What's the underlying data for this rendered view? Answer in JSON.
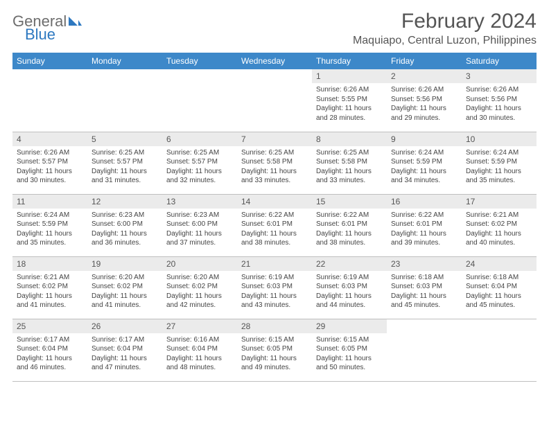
{
  "logo": {
    "word1": "General",
    "word2": "Blue"
  },
  "title": "February 2024",
  "location": "Maquiapo, Central Luzon, Philippines",
  "header_bg": "#3d88c0",
  "day_headers": [
    "Sunday",
    "Monday",
    "Tuesday",
    "Wednesday",
    "Thursday",
    "Friday",
    "Saturday"
  ],
  "weeks": [
    [
      null,
      null,
      null,
      null,
      {
        "n": "1",
        "sunrise": "Sunrise: 6:26 AM",
        "sunset": "Sunset: 5:55 PM",
        "day1": "Daylight: 11 hours",
        "day2": "and 28 minutes."
      },
      {
        "n": "2",
        "sunrise": "Sunrise: 6:26 AM",
        "sunset": "Sunset: 5:56 PM",
        "day1": "Daylight: 11 hours",
        "day2": "and 29 minutes."
      },
      {
        "n": "3",
        "sunrise": "Sunrise: 6:26 AM",
        "sunset": "Sunset: 5:56 PM",
        "day1": "Daylight: 11 hours",
        "day2": "and 30 minutes."
      }
    ],
    [
      {
        "n": "4",
        "sunrise": "Sunrise: 6:26 AM",
        "sunset": "Sunset: 5:57 PM",
        "day1": "Daylight: 11 hours",
        "day2": "and 30 minutes."
      },
      {
        "n": "5",
        "sunrise": "Sunrise: 6:25 AM",
        "sunset": "Sunset: 5:57 PM",
        "day1": "Daylight: 11 hours",
        "day2": "and 31 minutes."
      },
      {
        "n": "6",
        "sunrise": "Sunrise: 6:25 AM",
        "sunset": "Sunset: 5:57 PM",
        "day1": "Daylight: 11 hours",
        "day2": "and 32 minutes."
      },
      {
        "n": "7",
        "sunrise": "Sunrise: 6:25 AM",
        "sunset": "Sunset: 5:58 PM",
        "day1": "Daylight: 11 hours",
        "day2": "and 33 minutes."
      },
      {
        "n": "8",
        "sunrise": "Sunrise: 6:25 AM",
        "sunset": "Sunset: 5:58 PM",
        "day1": "Daylight: 11 hours",
        "day2": "and 33 minutes."
      },
      {
        "n": "9",
        "sunrise": "Sunrise: 6:24 AM",
        "sunset": "Sunset: 5:59 PM",
        "day1": "Daylight: 11 hours",
        "day2": "and 34 minutes."
      },
      {
        "n": "10",
        "sunrise": "Sunrise: 6:24 AM",
        "sunset": "Sunset: 5:59 PM",
        "day1": "Daylight: 11 hours",
        "day2": "and 35 minutes."
      }
    ],
    [
      {
        "n": "11",
        "sunrise": "Sunrise: 6:24 AM",
        "sunset": "Sunset: 5:59 PM",
        "day1": "Daylight: 11 hours",
        "day2": "and 35 minutes."
      },
      {
        "n": "12",
        "sunrise": "Sunrise: 6:23 AM",
        "sunset": "Sunset: 6:00 PM",
        "day1": "Daylight: 11 hours",
        "day2": "and 36 minutes."
      },
      {
        "n": "13",
        "sunrise": "Sunrise: 6:23 AM",
        "sunset": "Sunset: 6:00 PM",
        "day1": "Daylight: 11 hours",
        "day2": "and 37 minutes."
      },
      {
        "n": "14",
        "sunrise": "Sunrise: 6:22 AM",
        "sunset": "Sunset: 6:01 PM",
        "day1": "Daylight: 11 hours",
        "day2": "and 38 minutes."
      },
      {
        "n": "15",
        "sunrise": "Sunrise: 6:22 AM",
        "sunset": "Sunset: 6:01 PM",
        "day1": "Daylight: 11 hours",
        "day2": "and 38 minutes."
      },
      {
        "n": "16",
        "sunrise": "Sunrise: 6:22 AM",
        "sunset": "Sunset: 6:01 PM",
        "day1": "Daylight: 11 hours",
        "day2": "and 39 minutes."
      },
      {
        "n": "17",
        "sunrise": "Sunrise: 6:21 AM",
        "sunset": "Sunset: 6:02 PM",
        "day1": "Daylight: 11 hours",
        "day2": "and 40 minutes."
      }
    ],
    [
      {
        "n": "18",
        "sunrise": "Sunrise: 6:21 AM",
        "sunset": "Sunset: 6:02 PM",
        "day1": "Daylight: 11 hours",
        "day2": "and 41 minutes."
      },
      {
        "n": "19",
        "sunrise": "Sunrise: 6:20 AM",
        "sunset": "Sunset: 6:02 PM",
        "day1": "Daylight: 11 hours",
        "day2": "and 41 minutes."
      },
      {
        "n": "20",
        "sunrise": "Sunrise: 6:20 AM",
        "sunset": "Sunset: 6:02 PM",
        "day1": "Daylight: 11 hours",
        "day2": "and 42 minutes."
      },
      {
        "n": "21",
        "sunrise": "Sunrise: 6:19 AM",
        "sunset": "Sunset: 6:03 PM",
        "day1": "Daylight: 11 hours",
        "day2": "and 43 minutes."
      },
      {
        "n": "22",
        "sunrise": "Sunrise: 6:19 AM",
        "sunset": "Sunset: 6:03 PM",
        "day1": "Daylight: 11 hours",
        "day2": "and 44 minutes."
      },
      {
        "n": "23",
        "sunrise": "Sunrise: 6:18 AM",
        "sunset": "Sunset: 6:03 PM",
        "day1": "Daylight: 11 hours",
        "day2": "and 45 minutes."
      },
      {
        "n": "24",
        "sunrise": "Sunrise: 6:18 AM",
        "sunset": "Sunset: 6:04 PM",
        "day1": "Daylight: 11 hours",
        "day2": "and 45 minutes."
      }
    ],
    [
      {
        "n": "25",
        "sunrise": "Sunrise: 6:17 AM",
        "sunset": "Sunset: 6:04 PM",
        "day1": "Daylight: 11 hours",
        "day2": "and 46 minutes."
      },
      {
        "n": "26",
        "sunrise": "Sunrise: 6:17 AM",
        "sunset": "Sunset: 6:04 PM",
        "day1": "Daylight: 11 hours",
        "day2": "and 47 minutes."
      },
      {
        "n": "27",
        "sunrise": "Sunrise: 6:16 AM",
        "sunset": "Sunset: 6:04 PM",
        "day1": "Daylight: 11 hours",
        "day2": "and 48 minutes."
      },
      {
        "n": "28",
        "sunrise": "Sunrise: 6:15 AM",
        "sunset": "Sunset: 6:05 PM",
        "day1": "Daylight: 11 hours",
        "day2": "and 49 minutes."
      },
      {
        "n": "29",
        "sunrise": "Sunrise: 6:15 AM",
        "sunset": "Sunset: 6:05 PM",
        "day1": "Daylight: 11 hours",
        "day2": "and 50 minutes."
      },
      null,
      null
    ]
  ]
}
